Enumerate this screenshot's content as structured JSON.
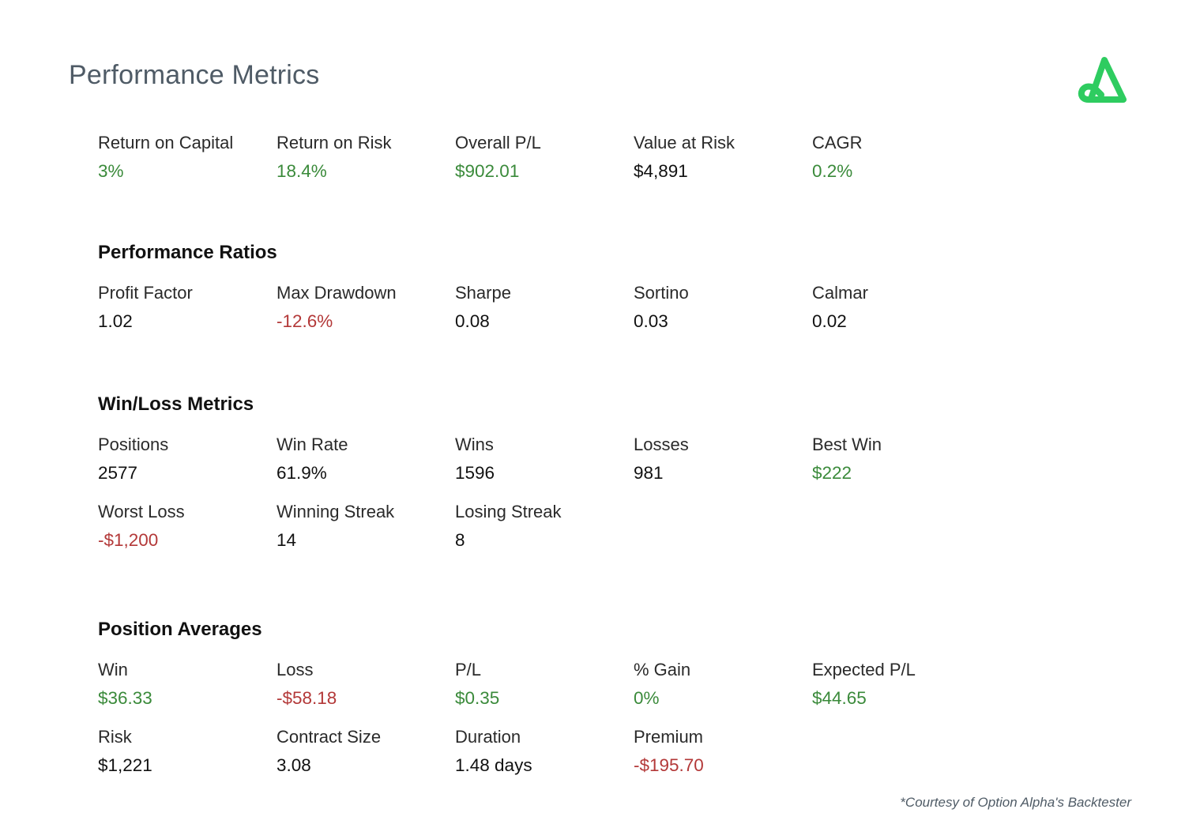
{
  "page": {
    "title": "Performance Metrics",
    "logo_icon": "option-alpha-logo",
    "footnote": "*Courtesy of Option Alpha's Backtester"
  },
  "colors": {
    "positive": "#3a8a3a",
    "negative": "#b33838",
    "neutral": "#111111",
    "title": "#4f5b66",
    "logo": "#2ecc60"
  },
  "summary": {
    "metrics": [
      {
        "label": "Return on Capital",
        "value": "3%",
        "tone": "positive"
      },
      {
        "label": "Return on Risk",
        "value": "18.4%",
        "tone": "positive"
      },
      {
        "label": "Overall P/L",
        "value": "$902.01",
        "tone": "positive"
      },
      {
        "label": "Value at Risk",
        "value": "$4,891",
        "tone": "neutral"
      },
      {
        "label": "CAGR",
        "value": "0.2%",
        "tone": "positive"
      }
    ]
  },
  "ratios": {
    "heading": "Performance Ratios",
    "metrics": [
      {
        "label": "Profit Factor",
        "value": "1.02",
        "tone": "neutral"
      },
      {
        "label": "Max Drawdown",
        "value": "-12.6%",
        "tone": "negative"
      },
      {
        "label": "Sharpe",
        "value": "0.08",
        "tone": "neutral"
      },
      {
        "label": "Sortino",
        "value": "0.03",
        "tone": "neutral"
      },
      {
        "label": "Calmar",
        "value": "0.02",
        "tone": "neutral"
      }
    ]
  },
  "winloss": {
    "heading": "Win/Loss Metrics",
    "metrics": [
      {
        "label": "Positions",
        "value": "2577",
        "tone": "neutral"
      },
      {
        "label": "Win Rate",
        "value": "61.9%",
        "tone": "neutral"
      },
      {
        "label": "Wins",
        "value": "1596",
        "tone": "neutral"
      },
      {
        "label": "Losses",
        "value": "981",
        "tone": "neutral"
      },
      {
        "label": "Best Win",
        "value": "$222",
        "tone": "positive"
      },
      {
        "label": "Worst Loss",
        "value": "-$1,200",
        "tone": "negative"
      },
      {
        "label": "Winning Streak",
        "value": "14",
        "tone": "neutral"
      },
      {
        "label": "Losing Streak",
        "value": "8",
        "tone": "neutral"
      }
    ]
  },
  "averages": {
    "heading": "Position Averages",
    "metrics": [
      {
        "label": "Win",
        "value": "$36.33",
        "tone": "positive"
      },
      {
        "label": "Loss",
        "value": "-$58.18",
        "tone": "negative"
      },
      {
        "label": "P/L",
        "value": "$0.35",
        "tone": "positive"
      },
      {
        "label": "% Gain",
        "value": "0%",
        "tone": "positive"
      },
      {
        "label": "Expected P/L",
        "value": "$44.65",
        "tone": "positive"
      },
      {
        "label": "Risk",
        "value": "$1,221",
        "tone": "neutral"
      },
      {
        "label": "Contract Size",
        "value": "3.08",
        "tone": "neutral"
      },
      {
        "label": "Duration",
        "value": "1.48 days",
        "tone": "neutral"
      },
      {
        "label": "Premium",
        "value": "-$195.70",
        "tone": "negative"
      }
    ]
  }
}
